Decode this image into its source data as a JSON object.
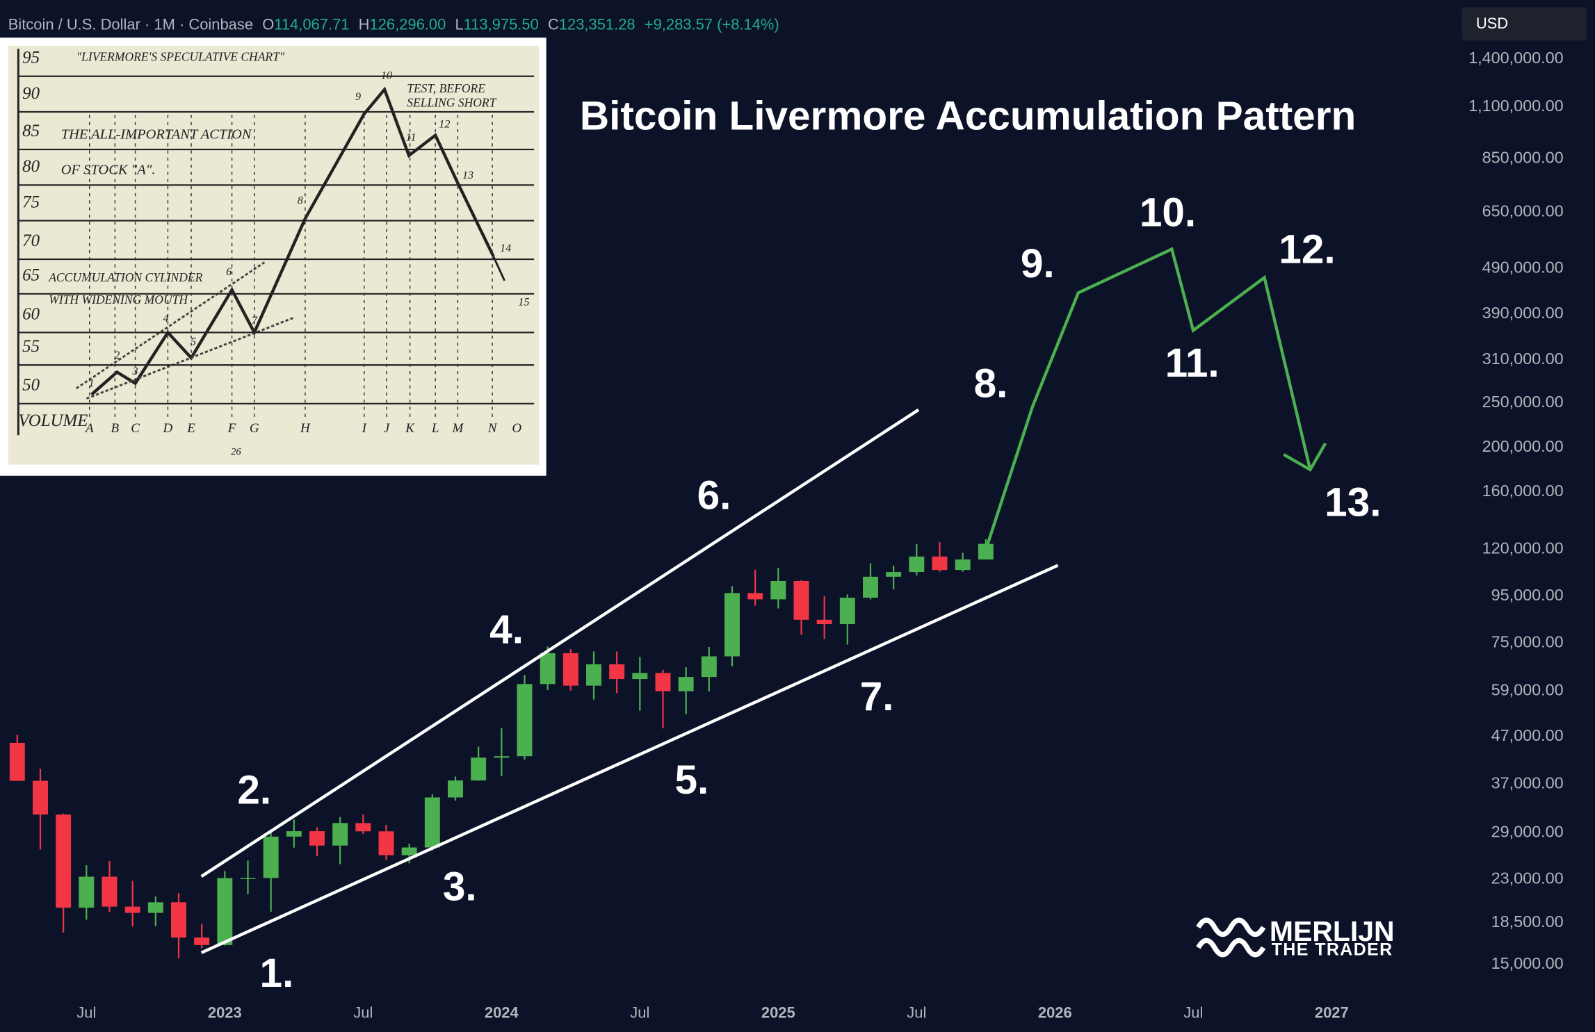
{
  "header": {
    "symbol": "Bitcoin / U.S. Dollar · 1M · Coinbase",
    "ohlc": [
      {
        "key": "O",
        "value": "114,067.71"
      },
      {
        "key": "H",
        "value": "126,296.00"
      },
      {
        "key": "L",
        "value": "113,975.50"
      },
      {
        "key": "C",
        "value": "123,351.28"
      }
    ],
    "change": "+9,283.57 (+8.14%)",
    "currency": "USD"
  },
  "chart_data": {
    "type": "candlestick",
    "title": "Bitcoin Livermore Accumulation Pattern",
    "log_scale": true,
    "up_color": "#4caf50",
    "down_color": "#f23645",
    "x": [
      "2022-04",
      "2022-05",
      "2022-06",
      "2022-07",
      "2022-08",
      "2022-09",
      "2022-10",
      "2022-11",
      "2022-12",
      "2023-01",
      "2023-02",
      "2023-03",
      "2023-04",
      "2023-05",
      "2023-06",
      "2023-07",
      "2023-08",
      "2023-09",
      "2023-10",
      "2023-11",
      "2023-12",
      "2024-01",
      "2024-02",
      "2024-03",
      "2024-04",
      "2024-05",
      "2024-06",
      "2024-07",
      "2024-08",
      "2024-09",
      "2024-10",
      "2024-11",
      "2024-12",
      "2025-01",
      "2025-02",
      "2025-03",
      "2025-04",
      "2025-05",
      "2025-06",
      "2025-07",
      "2025-08",
      "2025-09",
      "2025-10"
    ],
    "open": [
      45530,
      37640,
      31790,
      19940,
      23290,
      20050,
      19430,
      20490,
      17170,
      16540,
      23130,
      23140,
      28470,
      29250,
      27220,
      30470,
      29230,
      25940,
      26960,
      34640,
      37720,
      42280,
      42580,
      61130,
      71330,
      60640,
      67490,
      62680,
      64620,
      58970,
      63330,
      70220,
      96410,
      93430,
      102430,
      84350,
      82550,
      94200,
      104640,
      107140,
      115760,
      108240,
      114067.71
    ],
    "high": [
      47440,
      40000,
      31950,
      24670,
      25200,
      22800,
      21100,
      21450,
      18390,
      23960,
      25250,
      29180,
      31000,
      29820,
      31390,
      31800,
      30190,
      27480,
      35200,
      38450,
      44700,
      48970,
      63970,
      73780,
      72800,
      71980,
      71950,
      70000,
      65660,
      66500,
      73600,
      99800,
      108350,
      109350,
      102780,
      95000,
      95760,
      111980,
      110600,
      123230,
      124460,
      117900,
      126296
    ],
    "low": [
      37700,
      26700,
      17600,
      18780,
      19520,
      18150,
      18190,
      15480,
      16260,
      16500,
      21350,
      19550,
      26940,
      25810,
      24800,
      28860,
      25330,
      24900,
      26560,
      34100,
      37620,
      38550,
      41880,
      59320,
      59190,
      56550,
      58400,
      53500,
      49000,
      52550,
      58900,
      66800,
      90500,
      89260,
      78260,
      76600,
      74500,
      93400,
      98200,
      105300,
      107300,
      107270,
      113975.5
    ],
    "close": [
      37640,
      31790,
      19940,
      23290,
      20050,
      19430,
      20490,
      17170,
      16540,
      23130,
      23140,
      28470,
      29250,
      27220,
      30470,
      29230,
      25940,
      26960,
      34640,
      37720,
      42280,
      42580,
      61130,
      71330,
      60640,
      67490,
      62680,
      64620,
      58970,
      63330,
      70220,
      96410,
      93430,
      102430,
      84350,
      82550,
      94200,
      104640,
      107140,
      115760,
      108240,
      114067.71,
      123351.28
    ],
    "ylim": [
      10700,
      1880000
    ],
    "yticks": [
      {
        "value": 1400000,
        "label": "1,400,000.00"
      },
      {
        "value": 1100000,
        "label": "1,100,000.00"
      },
      {
        "value": 850000,
        "label": "850,000.00"
      },
      {
        "value": 650000,
        "label": "650,000.00"
      },
      {
        "value": 490000,
        "label": "490,000.00"
      },
      {
        "value": 390000,
        "label": "390,000.00"
      },
      {
        "value": 310000,
        "label": "310,000.00"
      },
      {
        "value": 250000,
        "label": "250,000.00"
      },
      {
        "value": 200000,
        "label": "200,000.00"
      },
      {
        "value": 160000,
        "label": "160,000.00"
      },
      {
        "value": 120000,
        "label": "120,000.00"
      },
      {
        "value": 95000,
        "label": "95,000.00"
      },
      {
        "value": 75000,
        "label": "75,000.00"
      },
      {
        "value": 59000,
        "label": "59,000.00"
      },
      {
        "value": 47000,
        "label": "47,000.00"
      },
      {
        "value": 37000,
        "label": "37,000.00"
      },
      {
        "value": 29000,
        "label": "29,000.00"
      },
      {
        "value": 23000,
        "label": "23,000.00"
      },
      {
        "value": 18500,
        "label": "18,500.00"
      },
      {
        "value": 15000,
        "label": "15,000.00"
      }
    ],
    "xticks": [
      {
        "value": "2022-07",
        "label": "Jul"
      },
      {
        "value": "2023-01",
        "label": "2023"
      },
      {
        "value": "2023-07",
        "label": "Jul"
      },
      {
        "value": "2024-01",
        "label": "2024"
      },
      {
        "value": "2024-07",
        "label": "Jul"
      },
      {
        "value": "2025-01",
        "label": "2025"
      },
      {
        "value": "2025-07",
        "label": "Jul"
      },
      {
        "value": "2026-01",
        "label": "2026"
      },
      {
        "value": "2026-07",
        "label": "Jul"
      },
      {
        "value": "2027-01",
        "label": "2027"
      }
    ],
    "annotations": [
      "1.",
      "2.",
      "3.",
      "4.",
      "5.",
      "6.",
      "7.",
      "8.",
      "9.",
      "10.",
      "11.",
      "12.",
      "13."
    ]
  },
  "inset": {
    "title": "\"LIVERMORE'S SPECULATIVE CHART\"",
    "action": [
      "THE ALL-IMPORTANT ACTION",
      "OF STOCK \"A\"."
    ],
    "note": [
      "TEST, BEFORE",
      "SELLING SHORT"
    ],
    "cylinder": [
      "ACCUMULATION CYLINDER",
      "WITH WIDENING MOUTH"
    ],
    "scale": [
      "95",
      "90",
      "85",
      "80",
      "75",
      "70",
      "65",
      "60",
      "55",
      "50"
    ],
    "volume": "VOLUME",
    "letters": [
      "A",
      "B",
      "C",
      "D",
      "E",
      "F",
      "G",
      "H",
      "I",
      "J",
      "K",
      "L",
      "M",
      "N",
      "O"
    ],
    "points": [
      "1",
      "2",
      "3",
      "4",
      "5",
      "6",
      "7",
      "8",
      "9",
      "10",
      "11",
      "12",
      "13",
      "14",
      "15"
    ],
    "page": "26"
  },
  "watermark": {
    "name": "MERLIJN",
    "tagline": "THE TRADER"
  }
}
